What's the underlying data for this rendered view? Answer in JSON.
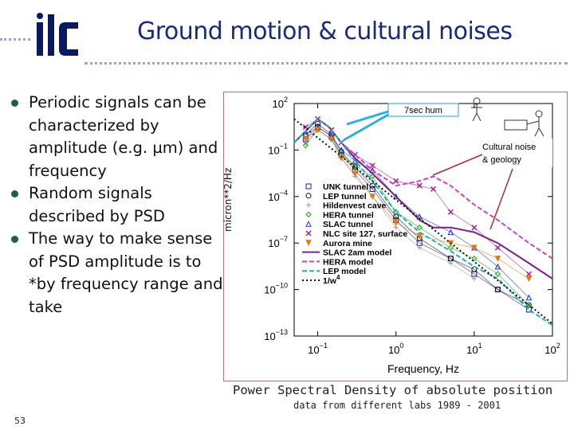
{
  "slide": {
    "title": "Ground motion & cultural noises",
    "logo_text": "ilc",
    "page_number": "53",
    "bullets": [
      "Periodic signals can be characterized by amplitude (e.g. µm) and frequency",
      "Random signals described by PSD",
      "The way to make sense of PSD amplitude is to *by frequency range and take"
    ],
    "caption": "Power Spectral Density of absolute position",
    "subcaption": "data from different labs 1989 - 2001"
  },
  "colors": {
    "title": "#1a2a7a",
    "dots": "#9aa6c6",
    "bullet": "#1f5f3f"
  },
  "chart_data": {
    "type": "line",
    "xlabel": "Frequency, Hz",
    "ylabel": "micron**2/Hz",
    "xscale": "log",
    "yscale": "log",
    "xlim": [
      0.05,
      100
    ],
    "ylim": [
      1e-13,
      100
    ],
    "xticks": [
      "10^-1",
      "10^0",
      "10^1",
      "10^2"
    ],
    "yticks": [
      "10^2",
      "10^-1",
      "10^-4",
      "10^-7",
      "10^-10",
      "10^-13"
    ],
    "annotations": [
      "7sec hum",
      "Cultural noise & geology"
    ],
    "series": [
      {
        "name": "UNK tunnel",
        "color": "#1a1aa0",
        "marker": "square",
        "x": [
          0.07,
          0.1,
          0.15,
          0.2,
          0.3,
          0.5,
          1,
          2,
          5,
          10,
          20,
          50
        ],
        "y": [
          0.5,
          3,
          0.8,
          0.05,
          0.005,
          0.0003,
          3e-06,
          1e-07,
          1e-08,
          1e-09,
          1e-10,
          5e-12
        ]
      },
      {
        "name": "LEP tunnel",
        "color": "#111111",
        "marker": "circle",
        "x": [
          0.07,
          0.1,
          0.15,
          0.2,
          0.3,
          0.5,
          1,
          2,
          5,
          10,
          20,
          50
        ],
        "y": [
          1,
          5,
          1,
          0.08,
          0.008,
          0.0005,
          5e-06,
          2e-07,
          1e-08,
          2e-09,
          1e-10,
          1e-11
        ]
      },
      {
        "name": "Hildenvest cave",
        "color": "#999999",
        "marker": "plus",
        "x": [
          0.07,
          0.1,
          0.15,
          0.2,
          0.3,
          0.5,
          1,
          2,
          5,
          10
        ],
        "y": [
          0.3,
          2,
          0.5,
          0.03,
          0.002,
          0.0001,
          1e-06,
          5e-08,
          5e-09,
          5e-10
        ]
      },
      {
        "name": "HERA tunnel",
        "color": "#20a020",
        "marker": "diamond",
        "x": [
          0.07,
          0.1,
          0.15,
          0.2,
          0.3,
          0.5,
          1,
          2,
          5,
          10,
          20,
          50
        ],
        "y": [
          0.2,
          2,
          0.5,
          0.05,
          0.01,
          0.002,
          1e-05,
          1e-06,
          5e-08,
          1e-08,
          1e-09,
          1e-11
        ]
      },
      {
        "name": "SLAC tunnel",
        "color": "#2030c0",
        "marker": "triangle",
        "x": [
          0.07,
          0.1,
          0.15,
          0.2,
          0.3,
          0.5,
          1,
          2,
          5,
          10,
          20,
          50
        ],
        "y": [
          1,
          3,
          0.8,
          0.1,
          0.02,
          0.005,
          0.0001,
          5e-06,
          5e-07,
          5e-08,
          3e-09,
          3e-11
        ]
      },
      {
        "name": "NLC site 127, surface",
        "color": "#a02090",
        "marker": "x",
        "x": [
          0.07,
          0.1,
          0.15,
          0.2,
          0.3,
          0.5,
          1,
          2,
          3,
          5,
          10,
          20,
          50
        ],
        "y": [
          3,
          10,
          2,
          0.3,
          0.05,
          0.01,
          0.001,
          0.0005,
          0.0003,
          1e-05,
          1e-06,
          5e-08,
          1e-09
        ]
      },
      {
        "name": "Aurora mine",
        "color": "#e07a10",
        "marker": "triangle-down",
        "x": [
          0.07,
          0.1,
          0.15,
          0.2,
          0.3,
          0.5,
          1,
          2,
          5,
          10,
          20,
          50
        ],
        "y": [
          0.5,
          2,
          0.5,
          0.03,
          0.003,
          0.0001,
          2e-06,
          3e-07,
          1e-07,
          5e-08,
          1e-08,
          5e-10
        ]
      },
      {
        "name": "SLAC 2am model",
        "color": "#7a2090",
        "marker": "line",
        "x": [
          0.05,
          0.1,
          0.14,
          0.2,
          0.3,
          0.5,
          1,
          2,
          3,
          5,
          10,
          20,
          50,
          100
        ],
        "y": [
          0.3,
          10,
          3,
          0.3,
          0.03,
          0.003,
          0.0001,
          3e-06,
          1e-06,
          1e-06,
          5e-07,
          1e-07,
          5e-09,
          5e-10
        ]
      },
      {
        "name": "HERA model",
        "color": "#d040c0",
        "marker": "dashed",
        "x": [
          0.05,
          0.1,
          0.14,
          0.2,
          0.3,
          0.5,
          1,
          2,
          3,
          5,
          10,
          20,
          50,
          100
        ],
        "y": [
          0.3,
          10,
          3,
          0.3,
          0.05,
          0.005,
          0.0005,
          0.001,
          0.002,
          0.0005,
          3e-05,
          3e-06,
          1e-07,
          1e-08
        ]
      },
      {
        "name": "LEP model",
        "color": "#20b0b0",
        "marker": "dashed",
        "x": [
          0.05,
          0.1,
          0.14,
          0.2,
          0.3,
          0.5,
          1,
          2,
          5,
          10,
          20,
          50,
          100
        ],
        "y": [
          0.3,
          10,
          3,
          0.3,
          0.02,
          0.001,
          1e-05,
          5e-07,
          3e-08,
          3e-09,
          5e-10,
          5e-12,
          5e-13
        ]
      },
      {
        "name": "1/w^4",
        "color": "#111111",
        "marker": "dotted",
        "x": [
          0.05,
          100
        ],
        "y": [
          10,
          6.25e-13
        ]
      }
    ]
  }
}
